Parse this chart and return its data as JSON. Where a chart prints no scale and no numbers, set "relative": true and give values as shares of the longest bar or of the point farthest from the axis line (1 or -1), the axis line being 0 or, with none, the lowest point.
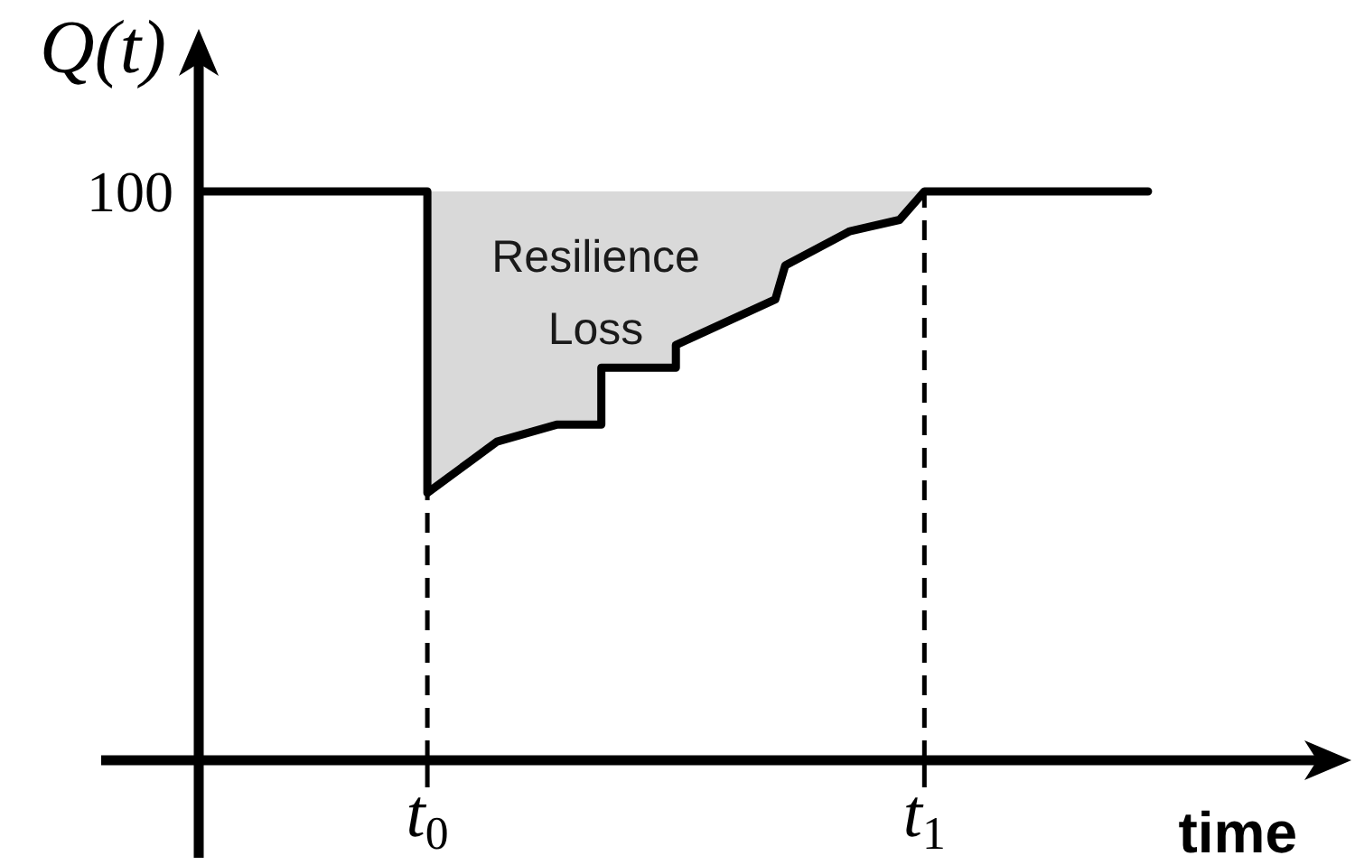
{
  "chart_data": {
    "type": "line",
    "relative": true,
    "xlabel": "time",
    "ylabel": "Q(t)",
    "xlim": [
      -0.46,
      1.83
    ],
    "xticks": [
      {
        "value": 0,
        "label": "t$_{0}$"
      },
      {
        "value": 1,
        "label": "t$_{1}$"
      }
    ],
    "series": [
      {
        "color": "#000000",
        "line_style": "solid",
        "x": [
          -0.46,
          0,
          0,
          0.14,
          0.26,
          0.35,
          0.35,
          0.5,
          0.5,
          0.7,
          0.72,
          0.85,
          0.95,
          1,
          1.45
        ],
        "values": [
          1,
          1,
          0.47,
          0.56,
          0.59,
          0.59,
          0.69,
          0.69,
          0.73,
          0.81,
          0.87,
          0.93,
          0.95,
          1,
          1
        ],
        "lower": [
          1,
          1,
          0.47,
          0.56,
          0.59,
          0.59,
          0.69,
          0.69,
          0.73,
          0.81,
          0.87,
          0.93,
          0.95,
          1,
          1
        ],
        "upper": [
          1,
          1,
          1,
          1,
          1,
          1,
          1,
          1,
          1,
          1,
          1,
          1,
          1,
          1,
          1
        ]
      }
    ],
    "ref_lines": [
      {
        "axis": "x",
        "value": 0,
        "color": "#000000",
        "line_style": "dashed"
      },
      {
        "axis": "x",
        "value": 1,
        "color": "#000000",
        "line_style": "dashed"
      }
    ],
    "annotations": [
      {
        "text": "100",
        "x": -0.46,
        "y": 1
      },
      "Resilience Loss"
    ]
  }
}
